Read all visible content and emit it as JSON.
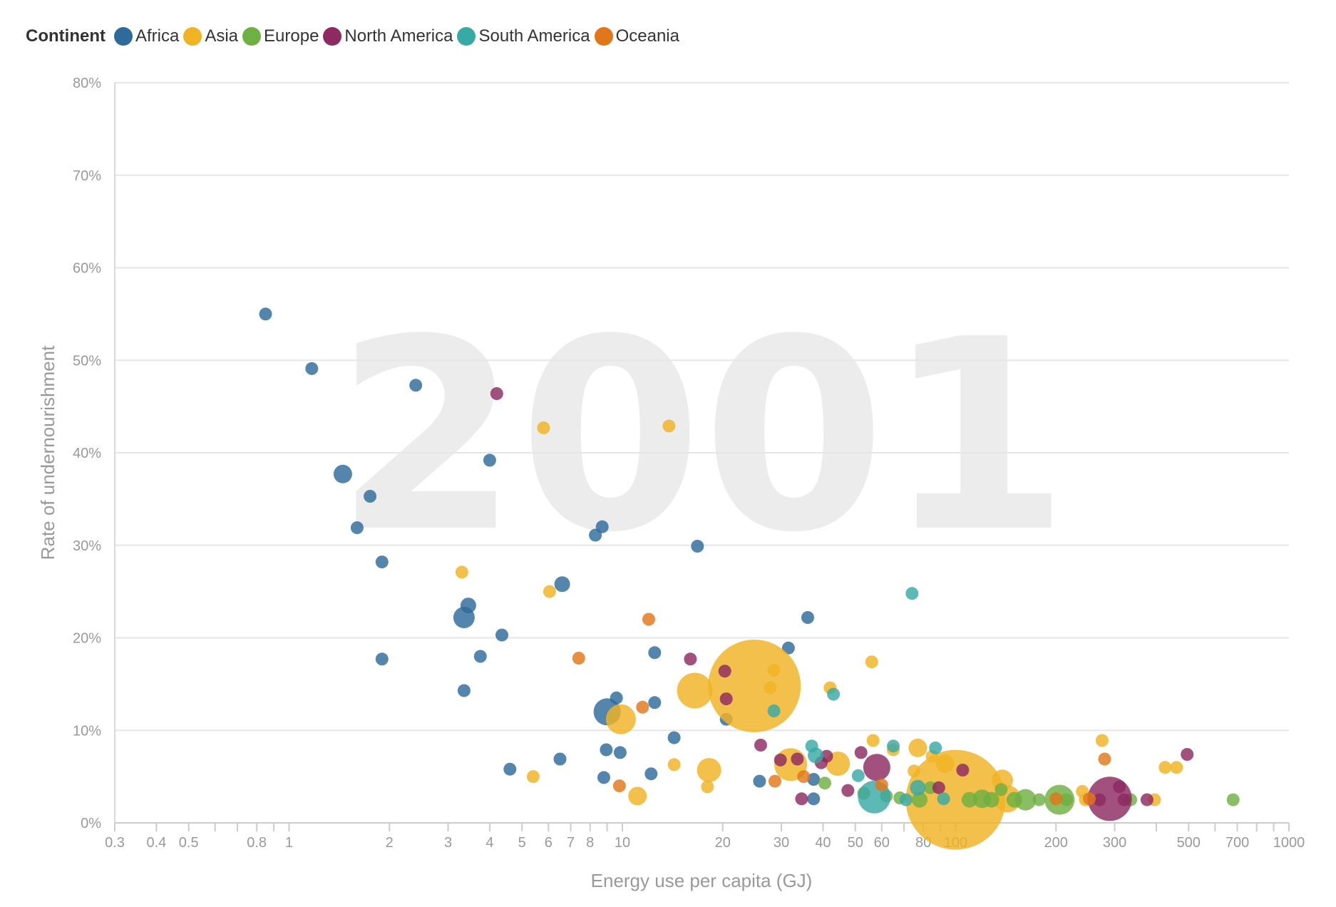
{
  "legend": {
    "title": "Continent",
    "items": [
      {
        "label": "Africa",
        "color": "#2e6a9b"
      },
      {
        "label": "Asia",
        "color": "#f0b323"
      },
      {
        "label": "Europe",
        "color": "#6fb043"
      },
      {
        "label": "North America",
        "color": "#8e2a62"
      },
      {
        "label": "South America",
        "color": "#38aaa6"
      },
      {
        "label": "Oceania",
        "color": "#e2761a"
      }
    ]
  },
  "chart_data": {
    "type": "scatter",
    "year_label": "2001",
    "xlabel": "Energy use per capita (GJ)",
    "ylabel": "Rate of undernourishment",
    "x_scale": "log",
    "xlim": [
      0.3,
      1000
    ],
    "ylim": [
      0,
      80
    ],
    "x_ticks": [
      0.3,
      0.4,
      0.5,
      0.8,
      1,
      2,
      3,
      4,
      5,
      6,
      7,
      8,
      10,
      20,
      30,
      40,
      50,
      60,
      80,
      100,
      200,
      300,
      500,
      700,
      1000
    ],
    "x_tick_labels": [
      "0.3",
      "0.4",
      "0.5",
      "0.8",
      "1",
      "2",
      "3",
      "4",
      "5",
      "6",
      "7",
      "8",
      "10",
      "20",
      "30",
      "40",
      "50",
      "60",
      "80",
      "100",
      "200",
      "300",
      "500",
      "700",
      "1000"
    ],
    "y_ticks": [
      0,
      10,
      20,
      30,
      40,
      50,
      60,
      70,
      80
    ],
    "y_tick_labels": [
      "0%",
      "10%",
      "20%",
      "30%",
      "40%",
      "50%",
      "60%",
      "70%",
      "80%"
    ],
    "grid": true,
    "legend_position": "top-left",
    "series": [
      {
        "name": "Africa",
        "color": "#2e6a9b",
        "points": [
          {
            "x": 0.85,
            "y": 55,
            "r": 9
          },
          {
            "x": 1.17,
            "y": 49.1,
            "r": 9
          },
          {
            "x": 2.4,
            "y": 47.3,
            "r": 9
          },
          {
            "x": 1.45,
            "y": 37.7,
            "r": 13
          },
          {
            "x": 1.75,
            "y": 35.3,
            "r": 9
          },
          {
            "x": 1.6,
            "y": 31.9,
            "r": 9
          },
          {
            "x": 4.0,
            "y": 39.2,
            "r": 9
          },
          {
            "x": 1.9,
            "y": 28.2,
            "r": 9
          },
          {
            "x": 8.7,
            "y": 32.0,
            "r": 9
          },
          {
            "x": 8.3,
            "y": 31.1,
            "r": 9
          },
          {
            "x": 16.8,
            "y": 29.9,
            "r": 9
          },
          {
            "x": 6.6,
            "y": 25.8,
            "r": 11
          },
          {
            "x": 3.45,
            "y": 23.5,
            "r": 11
          },
          {
            "x": 3.35,
            "y": 22.2,
            "r": 15
          },
          {
            "x": 4.35,
            "y": 20.3,
            "r": 9
          },
          {
            "x": 36,
            "y": 22.2,
            "r": 9
          },
          {
            "x": 1.9,
            "y": 17.7,
            "r": 9
          },
          {
            "x": 3.75,
            "y": 18.0,
            "r": 9
          },
          {
            "x": 12.5,
            "y": 18.4,
            "r": 9
          },
          {
            "x": 31.5,
            "y": 18.9,
            "r": 9
          },
          {
            "x": 3.35,
            "y": 14.3,
            "r": 9
          },
          {
            "x": 9.6,
            "y": 13.5,
            "r": 9
          },
          {
            "x": 12.5,
            "y": 13.0,
            "r": 9
          },
          {
            "x": 9.0,
            "y": 12.0,
            "r": 19
          },
          {
            "x": 20.5,
            "y": 11.2,
            "r": 9
          },
          {
            "x": 14.3,
            "y": 9.2,
            "r": 9
          },
          {
            "x": 8.95,
            "y": 7.9,
            "r": 9
          },
          {
            "x": 9.85,
            "y": 7.6,
            "r": 9
          },
          {
            "x": 6.5,
            "y": 6.9,
            "r": 9
          },
          {
            "x": 4.6,
            "y": 5.8,
            "r": 9
          },
          {
            "x": 8.8,
            "y": 4.9,
            "r": 9
          },
          {
            "x": 12.2,
            "y": 5.3,
            "r": 9
          },
          {
            "x": 25.8,
            "y": 4.5,
            "r": 9
          },
          {
            "x": 37.5,
            "y": 2.6,
            "r": 9
          },
          {
            "x": 37.5,
            "y": 4.7,
            "r": 9
          }
        ]
      },
      {
        "name": "Asia",
        "color": "#f0b323",
        "points": [
          {
            "x": 5.8,
            "y": 42.7,
            "r": 9
          },
          {
            "x": 13.8,
            "y": 42.9,
            "r": 9
          },
          {
            "x": 3.3,
            "y": 27.1,
            "r": 9
          },
          {
            "x": 6.05,
            "y": 25.0,
            "r": 9
          },
          {
            "x": 24.9,
            "y": 14.8,
            "r": 65
          },
          {
            "x": 16.5,
            "y": 14.3,
            "r": 25
          },
          {
            "x": 28.5,
            "y": 16.5,
            "r": 9
          },
          {
            "x": 27.8,
            "y": 14.6,
            "r": 9
          },
          {
            "x": 42,
            "y": 14.6,
            "r": 9
          },
          {
            "x": 56,
            "y": 17.4,
            "r": 9
          },
          {
            "x": 9.9,
            "y": 11.2,
            "r": 21
          },
          {
            "x": 14.3,
            "y": 6.3,
            "r": 9
          },
          {
            "x": 18.2,
            "y": 5.7,
            "r": 17
          },
          {
            "x": 5.4,
            "y": 5.0,
            "r": 9
          },
          {
            "x": 11.1,
            "y": 2.9,
            "r": 13
          },
          {
            "x": 18.0,
            "y": 3.9,
            "r": 9
          },
          {
            "x": 32.0,
            "y": 6.3,
            "r": 23
          },
          {
            "x": 44.3,
            "y": 6.4,
            "r": 17
          },
          {
            "x": 56.5,
            "y": 8.9,
            "r": 9
          },
          {
            "x": 77,
            "y": 8.1,
            "r": 13
          },
          {
            "x": 75,
            "y": 5.6,
            "r": 9
          },
          {
            "x": 100,
            "y": 2.5,
            "r": 70
          },
          {
            "x": 138,
            "y": 4.6,
            "r": 15
          },
          {
            "x": 143,
            "y": 2.6,
            "r": 19
          },
          {
            "x": 275,
            "y": 8.9,
            "r": 9
          },
          {
            "x": 425,
            "y": 6.0,
            "r": 9
          },
          {
            "x": 460,
            "y": 6.0,
            "r": 9
          },
          {
            "x": 240,
            "y": 3.4,
            "r": 9
          },
          {
            "x": 245,
            "y": 2.5,
            "r": 9
          },
          {
            "x": 395,
            "y": 2.5,
            "r": 9
          },
          {
            "x": 65,
            "y": 7.9,
            "r": 9
          },
          {
            "x": 85,
            "y": 7.2,
            "r": 9
          },
          {
            "x": 93,
            "y": 6.4,
            "r": 13
          }
        ]
      },
      {
        "name": "Europe",
        "color": "#6fb043",
        "points": [
          {
            "x": 40.5,
            "y": 4.3,
            "r": 9
          },
          {
            "x": 53,
            "y": 3.2,
            "r": 9
          },
          {
            "x": 62,
            "y": 2.9,
            "r": 9
          },
          {
            "x": 68,
            "y": 2.7,
            "r": 9
          },
          {
            "x": 78,
            "y": 2.5,
            "r": 11
          },
          {
            "x": 84,
            "y": 3.8,
            "r": 9
          },
          {
            "x": 110,
            "y": 2.5,
            "r": 11
          },
          {
            "x": 120,
            "y": 2.6,
            "r": 13
          },
          {
            "x": 128,
            "y": 2.5,
            "r": 11
          },
          {
            "x": 137,
            "y": 3.6,
            "r": 9
          },
          {
            "x": 150,
            "y": 2.5,
            "r": 11
          },
          {
            "x": 162,
            "y": 2.5,
            "r": 15
          },
          {
            "x": 178,
            "y": 2.5,
            "r": 9
          },
          {
            "x": 205,
            "y": 2.5,
            "r": 21
          },
          {
            "x": 215,
            "y": 2.5,
            "r": 9
          },
          {
            "x": 335,
            "y": 2.5,
            "r": 9
          },
          {
            "x": 680,
            "y": 2.5,
            "r": 9
          }
        ]
      },
      {
        "name": "North America",
        "color": "#8e2a62",
        "points": [
          {
            "x": 4.2,
            "y": 46.4,
            "r": 9
          },
          {
            "x": 16.0,
            "y": 17.7,
            "r": 9
          },
          {
            "x": 20.3,
            "y": 16.4,
            "r": 9
          },
          {
            "x": 20.5,
            "y": 13.4,
            "r": 9
          },
          {
            "x": 26.0,
            "y": 8.4,
            "r": 9
          },
          {
            "x": 29.8,
            "y": 6.8,
            "r": 9
          },
          {
            "x": 33.5,
            "y": 6.9,
            "r": 9
          },
          {
            "x": 41.0,
            "y": 7.2,
            "r": 9
          },
          {
            "x": 39.5,
            "y": 6.5,
            "r": 9
          },
          {
            "x": 52,
            "y": 7.6,
            "r": 9
          },
          {
            "x": 58,
            "y": 6.0,
            "r": 19
          },
          {
            "x": 34.5,
            "y": 2.6,
            "r": 9
          },
          {
            "x": 47.5,
            "y": 3.5,
            "r": 9
          },
          {
            "x": 89,
            "y": 3.8,
            "r": 9
          },
          {
            "x": 105,
            "y": 5.7,
            "r": 9
          },
          {
            "x": 270,
            "y": 2.5,
            "r": 9
          },
          {
            "x": 290,
            "y": 2.6,
            "r": 31
          },
          {
            "x": 310,
            "y": 3.9,
            "r": 9
          },
          {
            "x": 320,
            "y": 2.5,
            "r": 9
          },
          {
            "x": 375,
            "y": 2.5,
            "r": 9
          },
          {
            "x": 495,
            "y": 7.4,
            "r": 9
          }
        ]
      },
      {
        "name": "South America",
        "color": "#38aaa6",
        "points": [
          {
            "x": 74,
            "y": 24.8,
            "r": 9
          },
          {
            "x": 43.0,
            "y": 13.9,
            "r": 9
          },
          {
            "x": 28.5,
            "y": 12.1,
            "r": 9
          },
          {
            "x": 37.0,
            "y": 8.3,
            "r": 9
          },
          {
            "x": 38.0,
            "y": 7.3,
            "r": 11
          },
          {
            "x": 65,
            "y": 8.3,
            "r": 9
          },
          {
            "x": 87,
            "y": 8.1,
            "r": 9
          },
          {
            "x": 51,
            "y": 5.1,
            "r": 9
          },
          {
            "x": 57,
            "y": 2.8,
            "r": 23
          },
          {
            "x": 71,
            "y": 2.5,
            "r": 9
          },
          {
            "x": 77,
            "y": 3.8,
            "r": 11
          },
          {
            "x": 92,
            "y": 2.6,
            "r": 9
          }
        ]
      },
      {
        "name": "Oceania",
        "color": "#e2761a",
        "points": [
          {
            "x": 7.4,
            "y": 17.8,
            "r": 9
          },
          {
            "x": 12.0,
            "y": 22.0,
            "r": 9
          },
          {
            "x": 11.5,
            "y": 12.5,
            "r": 9
          },
          {
            "x": 9.8,
            "y": 4.0,
            "r": 9
          },
          {
            "x": 28.7,
            "y": 4.5,
            "r": 9
          },
          {
            "x": 35.0,
            "y": 5.0,
            "r": 9
          },
          {
            "x": 60,
            "y": 4.1,
            "r": 9
          },
          {
            "x": 200,
            "y": 2.6,
            "r": 9
          },
          {
            "x": 252,
            "y": 2.6,
            "r": 9
          },
          {
            "x": 280,
            "y": 6.9,
            "r": 9
          }
        ]
      }
    ]
  }
}
